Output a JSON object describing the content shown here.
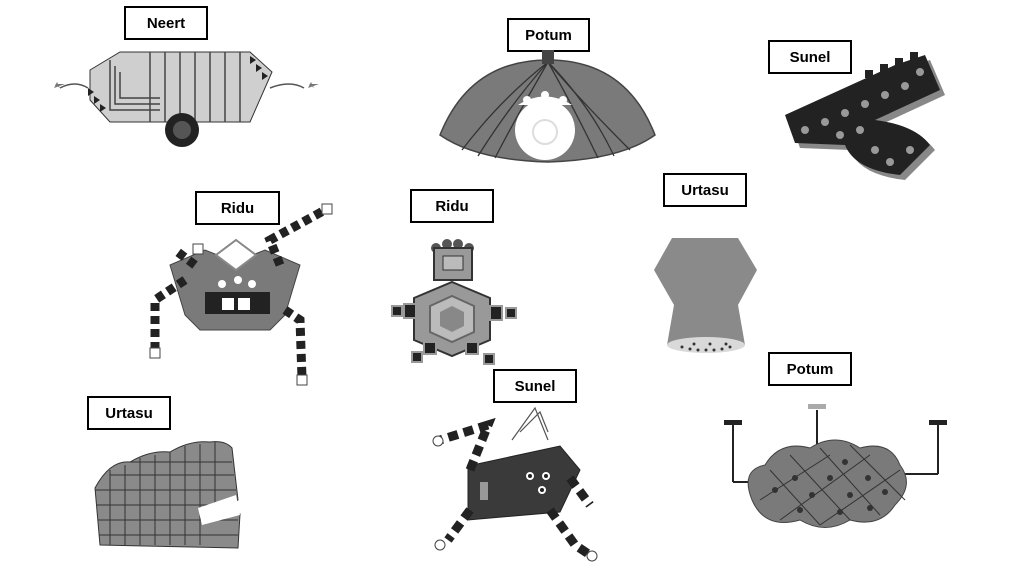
{
  "labels": {
    "neert": "Neert",
    "potum_top": "Potum",
    "sunel_top": "Sunel",
    "ridu_left": "Ridu",
    "ridu_center": "Ridu",
    "urtasu_right": "Urtasu",
    "urtasu_left": "Urtasu",
    "sunel_bottom": "Sunel",
    "potum_bottom": "Potum"
  },
  "colors": {
    "dark": "#3a3a3a",
    "mid": "#7a7a7a",
    "light": "#bdbdbd",
    "lighter": "#d9d9d9"
  }
}
